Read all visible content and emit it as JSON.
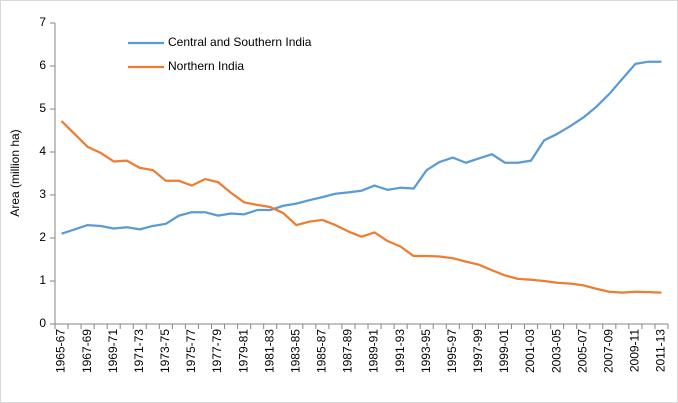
{
  "chart_data": {
    "type": "line",
    "y_label": "Area  (million ha)",
    "categories": [
      "1965-67",
      null,
      "1967-69",
      null,
      "1969-71",
      null,
      "1971-73",
      null,
      "1973-75",
      null,
      "1975-77",
      null,
      "1977-79",
      null,
      "1979-81",
      null,
      "1981-83",
      null,
      "1983-85",
      null,
      "1985-87",
      null,
      "1987-89",
      null,
      "1989-91",
      null,
      "1991-93",
      null,
      "1993-95",
      null,
      "1995-97",
      null,
      "1997-99",
      null,
      "1999-01",
      null,
      "2001-03",
      null,
      "2003-05",
      null,
      "2005-07",
      null,
      "2007-09",
      null,
      "2009-11",
      null,
      "2011-13"
    ],
    "series": [
      {
        "name": "Central and Southern India",
        "color": "#5b9bd5",
        "values": [
          2.1,
          2.2,
          2.3,
          2.28,
          2.22,
          2.25,
          2.2,
          2.28,
          2.33,
          2.52,
          2.6,
          2.6,
          2.52,
          2.57,
          2.55,
          2.65,
          2.65,
          2.75,
          2.8,
          2.88,
          2.95,
          3.03,
          3.06,
          3.1,
          3.22,
          3.12,
          3.17,
          3.15,
          3.58,
          3.77,
          3.87,
          3.75,
          3.85,
          3.95,
          3.75,
          3.75,
          3.8,
          4.27,
          4.42,
          4.6,
          4.8,
          5.05,
          5.35,
          5.7,
          6.05,
          6.1,
          6.1
        ]
      },
      {
        "name": "Northern India",
        "color": "#ed7d31",
        "values": [
          4.72,
          4.42,
          4.12,
          3.98,
          3.78,
          3.8,
          3.63,
          3.58,
          3.33,
          3.33,
          3.22,
          3.37,
          3.3,
          3.05,
          2.83,
          2.77,
          2.72,
          2.58,
          2.3,
          2.38,
          2.42,
          2.3,
          2.15,
          2.03,
          2.13,
          1.93,
          1.8,
          1.58,
          1.58,
          1.57,
          1.53,
          1.45,
          1.38,
          1.25,
          1.13,
          1.05,
          1.03,
          1.0,
          0.96,
          0.94,
          0.9,
          0.82,
          0.75,
          0.73,
          0.75,
          0.74,
          0.73
        ]
      }
    ],
    "ylim": [
      0,
      7
    ],
    "yticks": [
      0,
      1,
      2,
      3,
      4,
      5,
      6,
      7
    ],
    "grid": false,
    "legend": "top-left"
  }
}
